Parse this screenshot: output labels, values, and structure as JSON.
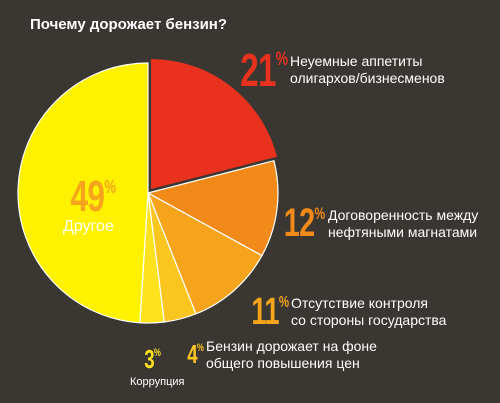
{
  "title": "Почему дорожает бензин?",
  "chart_data": {
    "type": "pie",
    "title": "Почему дорожает бензин?",
    "slices": [
      {
        "value": 21,
        "percent_label": "21",
        "label_lines": [
          "Неуемные аппетиты",
          "олигархов/бизнесменов"
        ],
        "color": "#e8321e",
        "text_color": "#e8321e"
      },
      {
        "value": 12,
        "percent_label": "12",
        "label_lines": [
          "Договоренность между",
          "нефтяными магнатами"
        ],
        "color": "#f28a1a",
        "text_color": "#f28a1a"
      },
      {
        "value": 11,
        "percent_label": "11",
        "label_lines": [
          "Отсутствие контроля",
          "со стороны государства"
        ],
        "color": "#f5a41c",
        "text_color": "#f5a41c"
      },
      {
        "value": 4,
        "percent_label": "4",
        "label_lines": [
          "Бензин дорожает на фоне",
          "общего повышения цен"
        ],
        "color": "#fbc51f",
        "text_color": "#fbc51f"
      },
      {
        "value": 3,
        "percent_label": "3",
        "label_lines": [
          "Коррупция"
        ],
        "color": "#fde21d",
        "text_color": "#fde21d"
      },
      {
        "value": 49,
        "percent_label": "49",
        "label_lines": [
          "Другое"
        ],
        "color": "#fff200",
        "text_color": "#f5a41c"
      }
    ],
    "percent_suffix": "%"
  }
}
